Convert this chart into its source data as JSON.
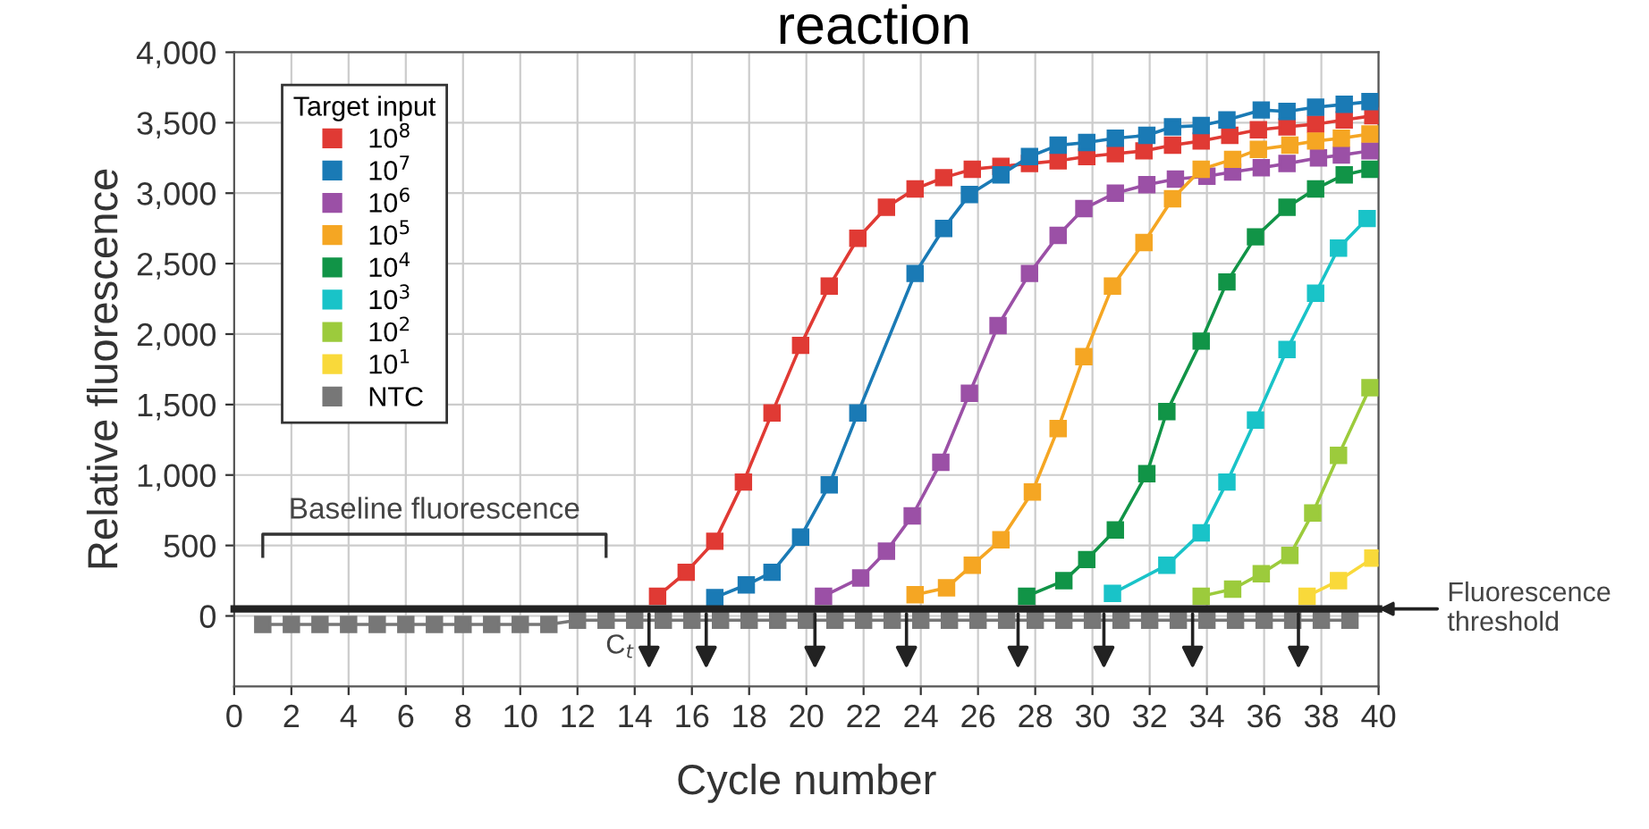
{
  "chart_data": {
    "type": "line",
    "title": "reaction",
    "xlabel": "Cycle number",
    "ylabel": "Relative fluorescence",
    "legend_title": "Target input",
    "legend": "top left",
    "marker": "square",
    "line_style": "solid",
    "grid": true,
    "xlim": [
      0,
      40
    ],
    "xticks": [
      0,
      2,
      4,
      6,
      8,
      10,
      12,
      14,
      16,
      18,
      20,
      22,
      24,
      26,
      28,
      30,
      32,
      34,
      36,
      38,
      40
    ],
    "ylim": [
      -500,
      4000
    ],
    "yticks": [
      0,
      500,
      {
        "value": 1000,
        "label": "1,000"
      },
      {
        "value": 1500,
        "label": "1,500"
      },
      {
        "value": 2000,
        "label": "2,000"
      },
      {
        "value": 2500,
        "label": "2,500"
      },
      {
        "value": 3000,
        "label": "3,000"
      },
      {
        "value": 3500,
        "label": "3,500"
      },
      {
        "value": 4000,
        "label": "4,000"
      }
    ],
    "series": [
      {
        "name": "10$^{8}$",
        "color": "#e03a34",
        "x": [
          14.8,
          15.8,
          16.8,
          17.8,
          18.8,
          19.8,
          20.8,
          21.8,
          22.8,
          23.8,
          24.8,
          25.8,
          26.8,
          27.8,
          28.8,
          29.8,
          30.8,
          31.8,
          32.8,
          33.8,
          34.8,
          35.8,
          36.8,
          37.8,
          38.8,
          39.8
        ],
        "values": [
          140,
          310,
          530,
          950,
          1440,
          1920,
          2340,
          2680,
          2900,
          3030,
          3110,
          3170,
          3190,
          3210,
          3230,
          3260,
          3280,
          3300,
          3340,
          3370,
          3410,
          3450,
          3470,
          3490,
          3520,
          3550
        ]
      },
      {
        "name": "10$^{7}$",
        "color": "#1a7ab5",
        "x": [
          16.8,
          17.9,
          18.8,
          19.8,
          20.8,
          21.8,
          23.8,
          24.8,
          25.7,
          26.8,
          27.8,
          28.8,
          29.8,
          30.8,
          31.9,
          32.8,
          33.8,
          34.7,
          35.9,
          36.8,
          37.8,
          38.8,
          39.7
        ],
        "values": [
          130,
          220,
          310,
          560,
          930,
          1440,
          2430,
          2750,
          2990,
          3130,
          3260,
          3340,
          3360,
          3390,
          3410,
          3470,
          3480,
          3520,
          3590,
          3580,
          3610,
          3630,
          3650
        ]
      },
      {
        "name": "10$^{6}$",
        "color": "#9b50a6",
        "x": [
          20.6,
          21.9,
          22.8,
          23.7,
          24.7,
          25.7,
          26.7,
          27.8,
          28.8,
          29.7,
          30.8,
          31.9,
          32.9,
          34.0,
          34.9,
          35.9,
          36.8,
          37.9,
          38.7,
          39.7
        ],
        "values": [
          140,
          270,
          460,
          710,
          1090,
          1580,
          2060,
          2430,
          2700,
          2890,
          3000,
          3060,
          3100,
          3120,
          3150,
          3180,
          3210,
          3250,
          3270,
          3300
        ]
      },
      {
        "name": "10$^{5}$",
        "color": "#f5a623",
        "x": [
          23.8,
          24.9,
          25.8,
          26.8,
          27.9,
          28.8,
          29.7,
          30.7,
          31.8,
          32.8,
          33.8,
          34.9,
          35.8,
          36.9,
          37.8,
          38.7,
          39.7
        ],
        "values": [
          150,
          200,
          360,
          540,
          880,
          1330,
          1840,
          2340,
          2650,
          2960,
          3170,
          3240,
          3310,
          3340,
          3370,
          3390,
          3420
        ]
      },
      {
        "name": "10$^{4}$",
        "color": "#119447",
        "x": [
          27.7,
          29.0,
          29.8,
          30.8,
          31.9,
          32.6,
          33.8,
          34.7,
          35.7,
          36.8,
          37.8,
          38.8,
          39.7
        ],
        "values": [
          140,
          250,
          400,
          610,
          1010,
          1450,
          1950,
          2370,
          2690,
          2900,
          3030,
          3130,
          3170
        ]
      },
      {
        "name": "10$^{3}$",
        "color": "#19c3c8",
        "x": [
          30.7,
          32.6,
          33.8,
          34.7,
          35.7,
          36.8,
          37.8,
          38.6,
          39.6
        ],
        "values": [
          160,
          360,
          590,
          950,
          1390,
          1890,
          2290,
          2610,
          2820
        ]
      },
      {
        "name": "10$^{2}$",
        "color": "#9ccb3c",
        "x": [
          33.8,
          34.9,
          35.9,
          36.9,
          37.7,
          38.6,
          39.7
        ],
        "values": [
          140,
          190,
          300,
          430,
          730,
          1140,
          1620
        ]
      },
      {
        "name": "10$^{1}$",
        "color": "#f9d93a",
        "x": [
          37.5,
          38.6,
          39.8
        ],
        "values": [
          140,
          250,
          410
        ]
      },
      {
        "name": "NTC",
        "color": "#777777",
        "x": [
          1,
          2,
          3,
          4,
          5,
          6,
          7,
          8,
          9,
          10,
          11,
          12,
          13,
          14,
          15,
          16,
          17,
          18,
          19,
          20,
          21,
          22,
          23,
          24,
          25,
          26,
          27,
          28,
          29,
          30,
          31,
          32,
          33,
          34,
          35,
          36,
          37,
          38,
          39
        ],
        "values": [
          -60,
          -60,
          -60,
          -60,
          -60,
          -60,
          -60,
          -60,
          -60,
          -60,
          -60,
          -30,
          -30,
          -30,
          -30,
          -30,
          -30,
          -30,
          -30,
          -30,
          -30,
          -30,
          -30,
          -30,
          -30,
          -30,
          -30,
          -30,
          -30,
          -30,
          -30,
          -30,
          -30,
          -30,
          -30,
          -30,
          -30,
          -30,
          -30
        ]
      }
    ],
    "ref_lines": [
      {
        "axis": "y",
        "value": 50,
        "label": "Fluorescence threshold",
        "color": "#222222",
        "line_style": "solid"
      }
    ],
    "annotations": [
      "Baseline fluorescence",
      {
        "text": "C$_{t}$",
        "x": 14.5,
        "y": 50
      }
    ]
  }
}
